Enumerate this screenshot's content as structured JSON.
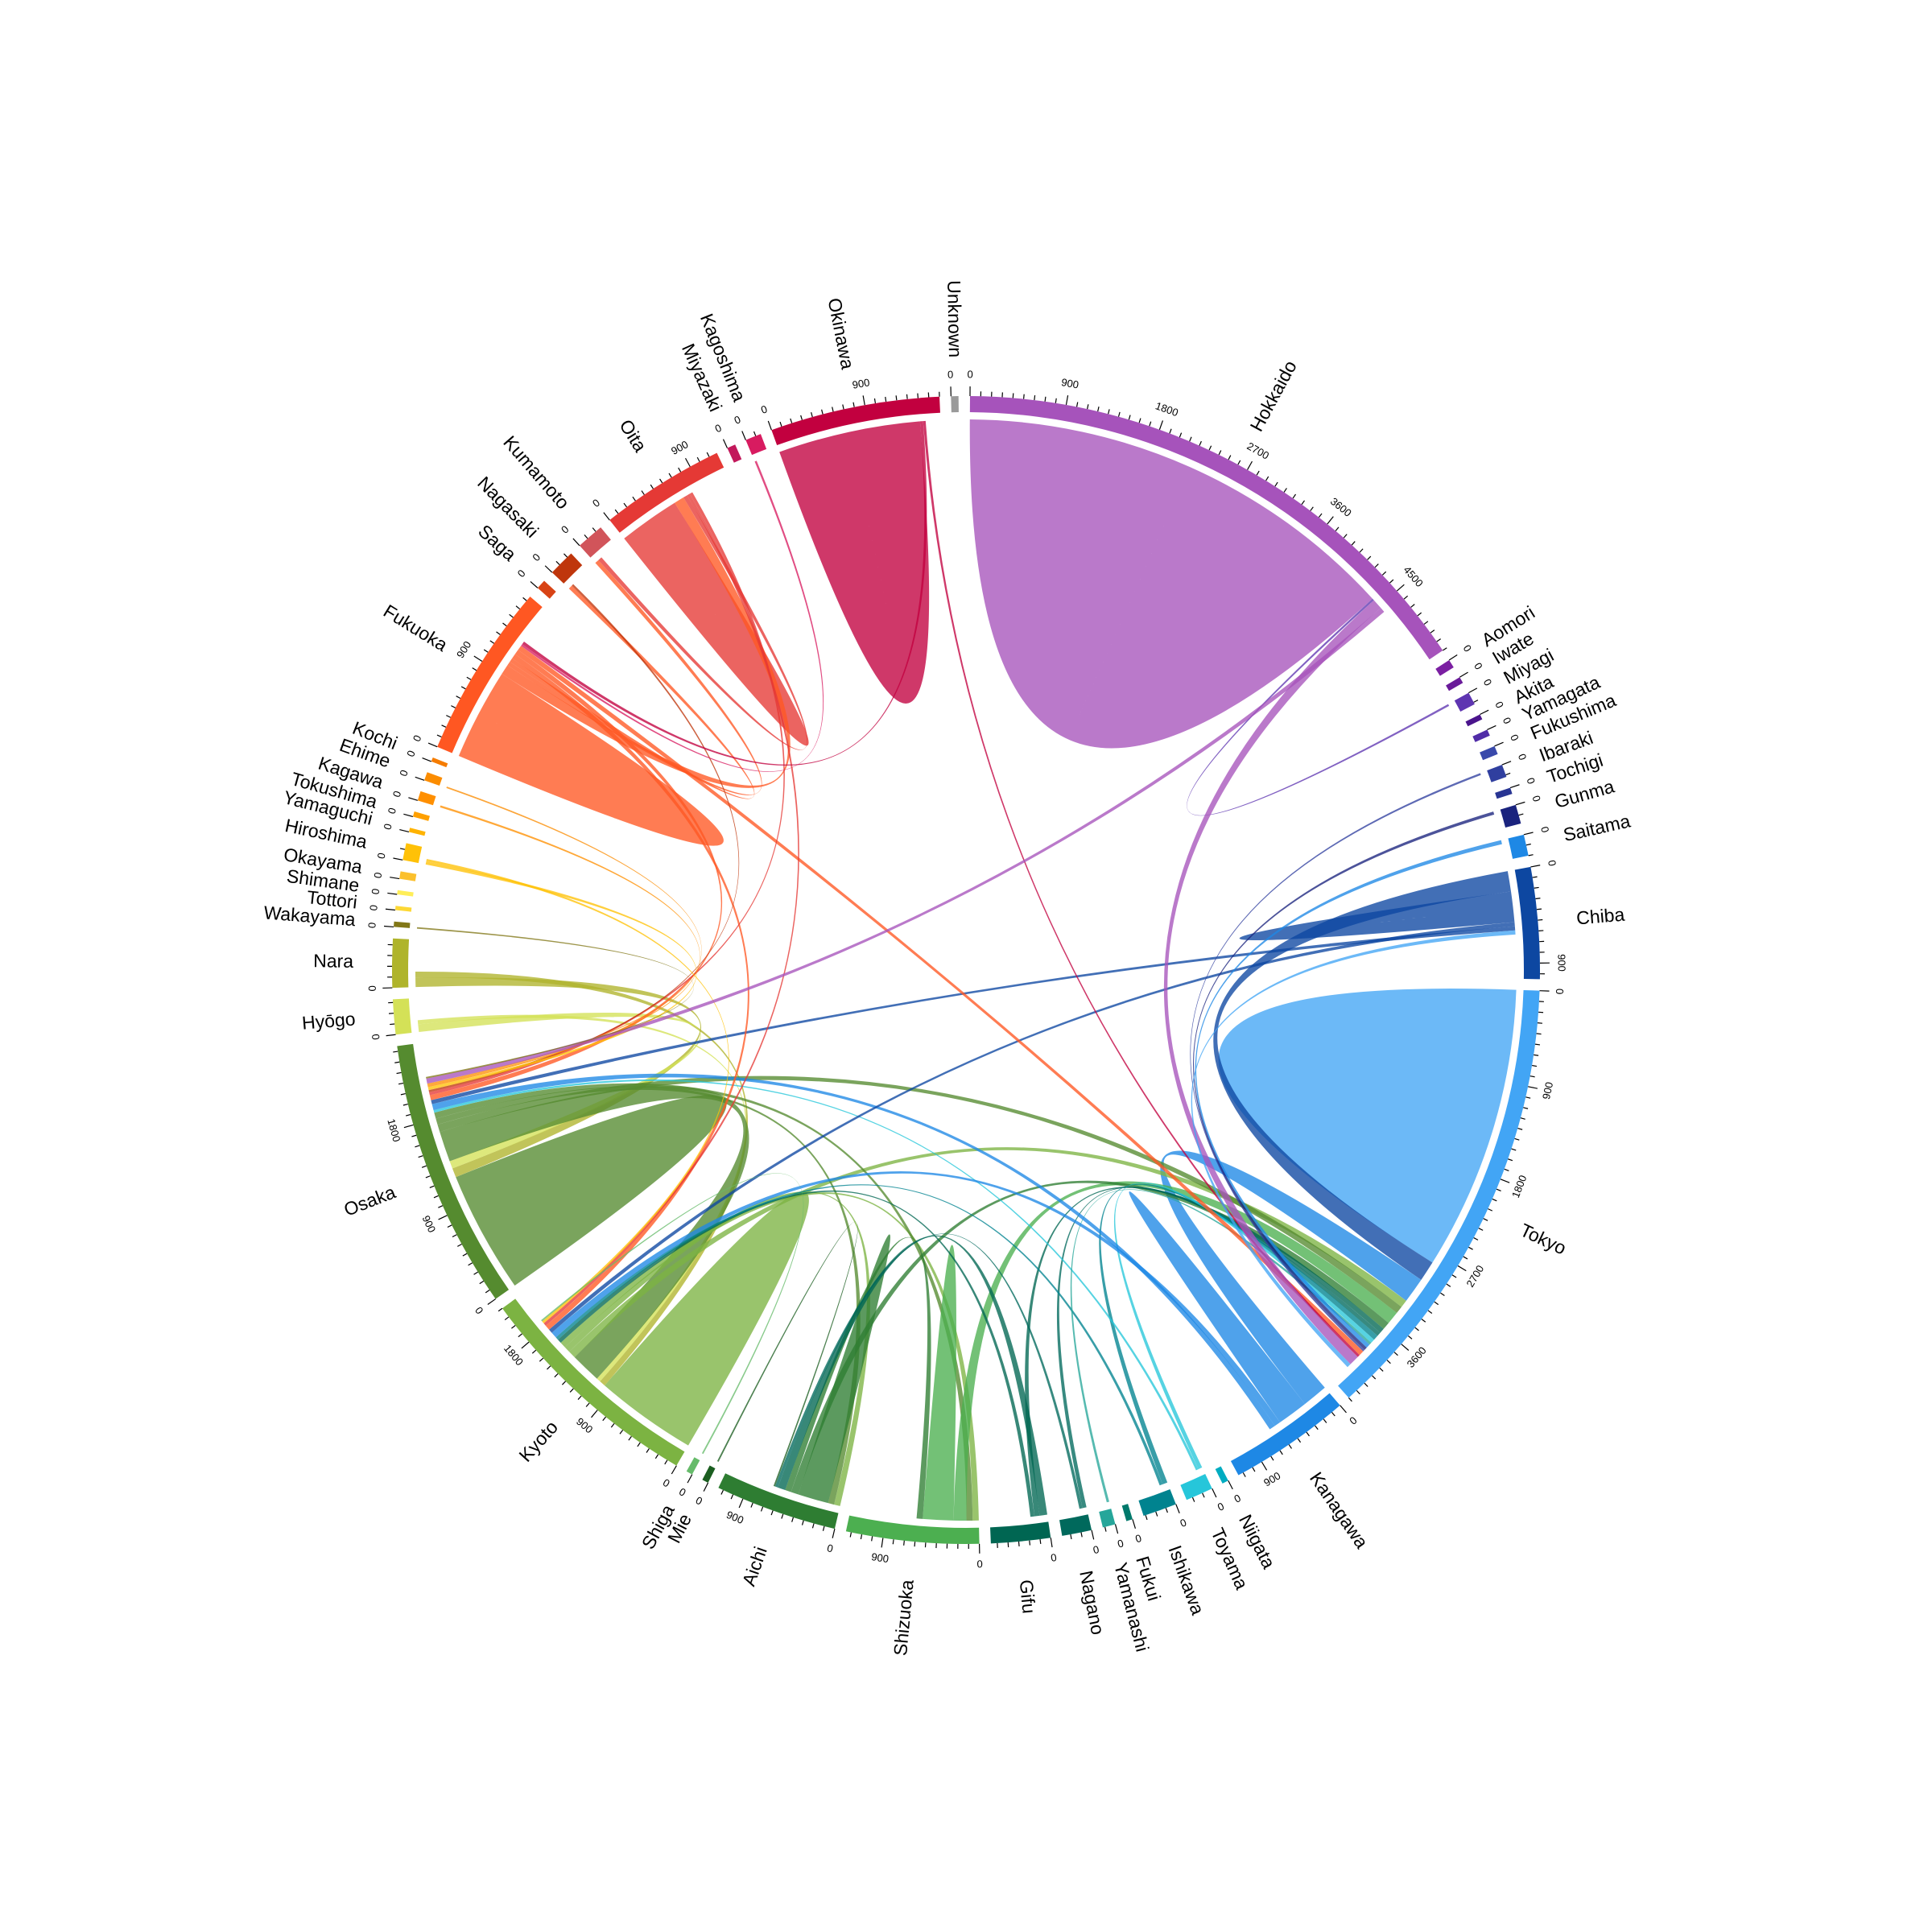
{
  "chart_data": {
    "type": "chord",
    "title": "",
    "tick_step": 100,
    "tick_label_step": 900,
    "segments": [
      {
        "name": "Unknown",
        "total": 70,
        "color": "#9a9a9a"
      },
      {
        "name": "Hokkaido",
        "total": 5200,
        "color": "#a653bb"
      },
      {
        "name": "Aomori",
        "total": 80,
        "color": "#7b1fa2"
      },
      {
        "name": "Iwate",
        "total": 60,
        "color": "#6a1b9a"
      },
      {
        "name": "Miyagi",
        "total": 120,
        "color": "#5e35b1"
      },
      {
        "name": "Akita",
        "total": 50,
        "color": "#4a148c"
      },
      {
        "name": "Yamagata",
        "total": 60,
        "color": "#512da8"
      },
      {
        "name": "Fukushima",
        "total": 80,
        "color": "#3949ab"
      },
      {
        "name": "Ibaraki",
        "total": 120,
        "color": "#303f9f"
      },
      {
        "name": "Tochigi",
        "total": 60,
        "color": "#283593"
      },
      {
        "name": "Gunma",
        "total": 180,
        "color": "#1a237e"
      },
      {
        "name": "Saitama",
        "total": 200,
        "color": "#1e88e5"
      },
      {
        "name": "Chiba",
        "total": 1050,
        "color": "#0d47a1"
      },
      {
        "name": "Tokyo",
        "total": 4300,
        "color": "#42a5f5"
      },
      {
        "name": "Kanagawa",
        "total": 1150,
        "color": "#1e88e5"
      },
      {
        "name": "Niigata",
        "total": 60,
        "color": "#00acc1"
      },
      {
        "name": "Toyama",
        "total": 260,
        "color": "#26c6da"
      },
      {
        "name": "Ishikawa",
        "total": 320,
        "color": "#00838f"
      },
      {
        "name": "Fukui",
        "total": 60,
        "color": "#00796b"
      },
      {
        "name": "Yamanashi",
        "total": 120,
        "color": "#26a69a"
      },
      {
        "name": "Nagano",
        "total": 280,
        "color": "#00695c"
      },
      {
        "name": "Gifu",
        "total": 560,
        "color": "#006652"
      },
      {
        "name": "Shizuoka",
        "total": 1250,
        "color": "#4caf50"
      },
      {
        "name": "Aichi",
        "total": 1150,
        "color": "#2e7d32"
      },
      {
        "name": "Mie",
        "total": 60,
        "color": "#1b5e20"
      },
      {
        "name": "Shiga",
        "total": 60,
        "color": "#66bb6a"
      },
      {
        "name": "Kyoto",
        "total": 2200,
        "color": "#7cb342"
      },
      {
        "name": "Osaka",
        "total": 2550,
        "color": "#558b2f"
      },
      {
        "name": "Hyōgo",
        "total": 330,
        "color": "#d4e157"
      },
      {
        "name": "Nara",
        "total": 460,
        "color": "#afb42b"
      },
      {
        "name": "Wakayama",
        "total": 50,
        "color": "#827717"
      },
      {
        "name": "Tottori",
        "total": 40,
        "color": "#fdd835"
      },
      {
        "name": "Shimane",
        "total": 40,
        "color": "#ffee58"
      },
      {
        "name": "Okayama",
        "total": 70,
        "color": "#fbc02d"
      },
      {
        "name": "Hiroshima",
        "total": 160,
        "color": "#ffc107"
      },
      {
        "name": "Yamaguchi",
        "total": 40,
        "color": "#ffb300"
      },
      {
        "name": "Tokushima",
        "total": 50,
        "color": "#ffa000"
      },
      {
        "name": "Kagawa",
        "total": 90,
        "color": "#ff8f00"
      },
      {
        "name": "Ehime",
        "total": 80,
        "color": "#fb8c00"
      },
      {
        "name": "Kochi",
        "total": 40,
        "color": "#f57c00"
      },
      {
        "name": "Fukuoka",
        "total": 1650,
        "color": "#ff5722"
      },
      {
        "name": "Saga",
        "total": 90,
        "color": "#d84315"
      },
      {
        "name": "Nagasaki",
        "total": 250,
        "color": "#bf360c"
      },
      {
        "name": "Kumamoto",
        "total": 260,
        "color": "#d1545a"
      },
      {
        "name": "Oita",
        "total": 1180,
        "color": "#e53935"
      },
      {
        "name": "Miyazaki",
        "total": 80,
        "color": "#c2185b"
      },
      {
        "name": "Kagoshima",
        "total": 150,
        "color": "#d81b60"
      },
      {
        "name": "Okinawa",
        "total": 1600,
        "color": "#c2003f"
      }
    ],
    "flows": [
      {
        "a": "Hokkaido",
        "b": "Hokkaido",
        "value": 4400
      },
      {
        "a": "Okinawa",
        "b": "Okinawa",
        "value": 1400
      },
      {
        "a": "Tokyo",
        "b": "Tokyo",
        "value": 2800
      },
      {
        "a": "Osaka",
        "b": "Osaka",
        "value": 1200
      },
      {
        "a": "Kyoto",
        "b": "Kyoto",
        "value": 1000
      },
      {
        "a": "Fukuoka",
        "b": "Fukuoka",
        "value": 900
      },
      {
        "a": "Oita",
        "b": "Oita",
        "value": 600
      },
      {
        "a": "Chiba",
        "b": "Tokyo",
        "value": 400
      },
      {
        "a": "Chiba",
        "b": "Chiba",
        "value": 300
      },
      {
        "a": "Kanagawa",
        "b": "Tokyo",
        "value": 500
      },
      {
        "a": "Kanagawa",
        "b": "Kanagawa",
        "value": 300
      },
      {
        "a": "Nara",
        "b": "Osaka",
        "value": 180
      },
      {
        "a": "Nara",
        "b": "Kyoto",
        "value": 120
      },
      {
        "a": "Hyōgo",
        "b": "Osaka",
        "value": 150
      },
      {
        "a": "Hyōgo",
        "b": "Kyoto",
        "value": 80
      },
      {
        "a": "Osaka",
        "b": "Kyoto",
        "value": 600
      },
      {
        "a": "Kyoto",
        "b": "Tokyo",
        "value": 150
      },
      {
        "a": "Osaka",
        "b": "Tokyo",
        "value": 150
      },
      {
        "a": "Kyoto",
        "b": "Aichi",
        "value": 120
      },
      {
        "a": "Osaka",
        "b": "Aichi",
        "value": 120
      },
      {
        "a": "Kyoto",
        "b": "Shizuoka",
        "value": 120
      },
      {
        "a": "Osaka",
        "b": "Shizuoka",
        "value": 120
      },
      {
        "a": "Shizuoka",
        "b": "Tokyo",
        "value": 250
      },
      {
        "a": "Shizuoka",
        "b": "Shizuoka",
        "value": 300
      },
      {
        "a": "Aichi",
        "b": "Aichi",
        "value": 300
      },
      {
        "a": "Aichi",
        "b": "Tokyo",
        "value": 150
      },
      {
        "a": "Aichi",
        "b": "Shizuoka",
        "value": 120
      },
      {
        "a": "Gifu",
        "b": "Aichi",
        "value": 150
      },
      {
        "a": "Gifu",
        "b": "Tokyo",
        "value": 100
      },
      {
        "a": "Gifu",
        "b": "Kyoto",
        "value": 80
      },
      {
        "a": "Nagano",
        "b": "Tokyo",
        "value": 80
      },
      {
        "a": "Nagano",
        "b": "Aichi",
        "value": 60
      },
      {
        "a": "Ishikawa",
        "b": "Tokyo",
        "value": 100
      },
      {
        "a": "Ishikawa",
        "b": "Kyoto",
        "value": 60
      },
      {
        "a": "Toyama",
        "b": "Tokyo",
        "value": 80
      },
      {
        "a": "Toyama",
        "b": "Osaka",
        "value": 50
      },
      {
        "a": "Yamanashi",
        "b": "Tokyo",
        "value": 50
      },
      {
        "a": "Kanagawa",
        "b": "Kyoto",
        "value": 120
      },
      {
        "a": "Kanagawa",
        "b": "Osaka",
        "value": 120
      },
      {
        "a": "Chiba",
        "b": "Kyoto",
        "value": 80
      },
      {
        "a": "Chiba",
        "b": "Osaka",
        "value": 80
      },
      {
        "a": "Saitama",
        "b": "Tokyo",
        "value": 80
      },
      {
        "a": "Gunma",
        "b": "Tokyo",
        "value": 60
      },
      {
        "a": "Miyagi",
        "b": "Hokkaido",
        "value": 40
      },
      {
        "a": "Ibaraki",
        "b": "Tokyo",
        "value": 40
      },
      {
        "a": "Fukuoka",
        "b": "Oita",
        "value": 200
      },
      {
        "a": "Fukuoka",
        "b": "Kumamoto",
        "value": 80
      },
      {
        "a": "Fukuoka",
        "b": "Nagasaki",
        "value": 80
      },
      {
        "a": "Fukuoka",
        "b": "Kyoto",
        "value": 100
      },
      {
        "a": "Fukuoka",
        "b": "Osaka",
        "value": 100
      },
      {
        "a": "Fukuoka",
        "b": "Tokyo",
        "value": 100
      },
      {
        "a": "Oita",
        "b": "Kumamoto",
        "value": 80
      },
      {
        "a": "Oita",
        "b": "Kyoto",
        "value": 60
      },
      {
        "a": "Oita",
        "b": "Osaka",
        "value": 60
      },
      {
        "a": "Nagasaki",
        "b": "Osaka",
        "value": 40
      },
      {
        "a": "Kagoshima",
        "b": "Fukuoka",
        "value": 40
      },
      {
        "a": "Okinawa",
        "b": "Fukuoka",
        "value": 60
      },
      {
        "a": "Okinawa",
        "b": "Tokyo",
        "value": 50
      },
      {
        "a": "Hiroshima",
        "b": "Osaka",
        "value": 60
      },
      {
        "a": "Hiroshima",
        "b": "Kyoto",
        "value": 50
      },
      {
        "a": "Kagawa",
        "b": "Osaka",
        "value": 40
      },
      {
        "a": "Ehime",
        "b": "Osaka",
        "value": 30
      },
      {
        "a": "Hokkaido",
        "b": "Tokyo",
        "value": 200
      },
      {
        "a": "Hokkaido",
        "b": "Osaka",
        "value": 100
      },
      {
        "a": "Tokyo",
        "b": "Chiba",
        "value": 80
      },
      {
        "a": "Wakayama",
        "b": "Osaka",
        "value": 30
      },
      {
        "a": "Mie",
        "b": "Aichi",
        "value": 30
      },
      {
        "a": "Shiga",
        "b": "Kyoto",
        "value": 30
      }
    ]
  }
}
